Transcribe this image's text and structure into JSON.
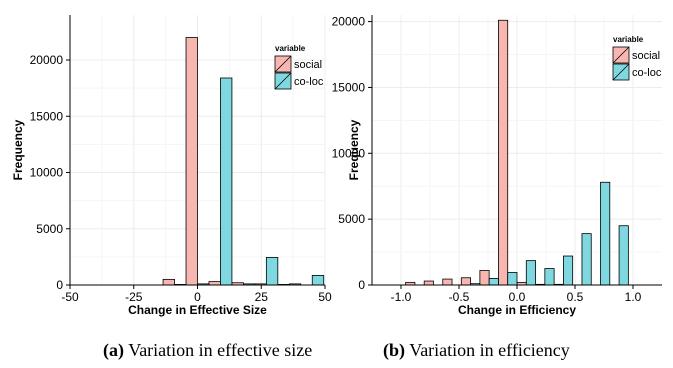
{
  "colors": {
    "social": "#f8b6b0",
    "co-loc": "#7fd8df",
    "grid": "#ececec",
    "axis": "#000000"
  },
  "chart_data": [
    {
      "type": "bar",
      "xlabel": "Change in Effective Size",
      "ylabel": "Frequency",
      "xlim": [
        -50,
        50
      ],
      "ylim": [
        0,
        24000
      ],
      "x_ticks": [
        -50,
        -25,
        0,
        25,
        50
      ],
      "x_tick_labels": [
        "-50",
        "-25",
        "0",
        "25",
        "50"
      ],
      "y_ticks": [
        0,
        5000,
        10000,
        15000,
        20000
      ],
      "y_tick_labels": [
        "0",
        "5000",
        "10000",
        "15000",
        "20000"
      ],
      "bin_width": 9,
      "legend": {
        "title": "variable",
        "position": "top-right",
        "entries": [
          "social",
          "co-loc"
        ]
      },
      "series": [
        {
          "name": "social",
          "x": [
            -45,
            -36,
            -27,
            -18,
            -9,
            0,
            9,
            18,
            27,
            36,
            45
          ],
          "values": [
            0,
            0,
            0,
            0,
            500,
            22000,
            300,
            200,
            100,
            50,
            0
          ]
        },
        {
          "name": "co-loc",
          "x": [
            -45,
            -36,
            -27,
            -18,
            -9,
            0,
            9,
            18,
            27,
            36,
            45
          ],
          "values": [
            0,
            0,
            0,
            0,
            50,
            100,
            18400,
            100,
            2450,
            100,
            850
          ]
        }
      ]
    },
    {
      "type": "bar",
      "xlabel": "Change in Efficiency",
      "ylabel": "Frequency",
      "xlim": [
        -1.25,
        1.25
      ],
      "ylim": [
        0,
        20500
      ],
      "x_ticks": [
        -1.0,
        -0.5,
        0.0,
        0.5,
        1.0
      ],
      "x_tick_labels": [
        "-1.0",
        "-0.5",
        "0.0",
        "0.5",
        "1.0"
      ],
      "y_ticks": [
        0,
        5000,
        10000,
        15000,
        20000
      ],
      "y_tick_labels": [
        "0",
        "5000",
        "10000",
        "15000",
        "20000"
      ],
      "bin_width": 0.16,
      "legend": {
        "title": "variable",
        "position": "top-right",
        "entries": [
          "social",
          "co-loc"
        ]
      },
      "series": [
        {
          "name": "social",
          "x": [
            -1.04,
            -0.88,
            -0.72,
            -0.56,
            -0.4,
            -0.24,
            -0.08,
            0.08,
            0.24,
            0.4,
            0.56,
            0.72,
            0.88,
            1.04
          ],
          "values": [
            0,
            200,
            300,
            450,
            550,
            1100,
            20100,
            200,
            50,
            50,
            0,
            0,
            0,
            0
          ]
        },
        {
          "name": "co-loc",
          "x": [
            -1.04,
            -0.88,
            -0.72,
            -0.56,
            -0.4,
            -0.24,
            -0.08,
            0.08,
            0.24,
            0.4,
            0.56,
            0.72,
            0.88,
            1.04
          ],
          "values": [
            0,
            0,
            0,
            0,
            100,
            500,
            950,
            1850,
            1250,
            2200,
            3900,
            7800,
            4500,
            0
          ]
        }
      ]
    }
  ],
  "captions": [
    {
      "tag": "(a)",
      "text": "Variation in effective size"
    },
    {
      "tag": "(b)",
      "text": "Variation in efficiency"
    }
  ]
}
